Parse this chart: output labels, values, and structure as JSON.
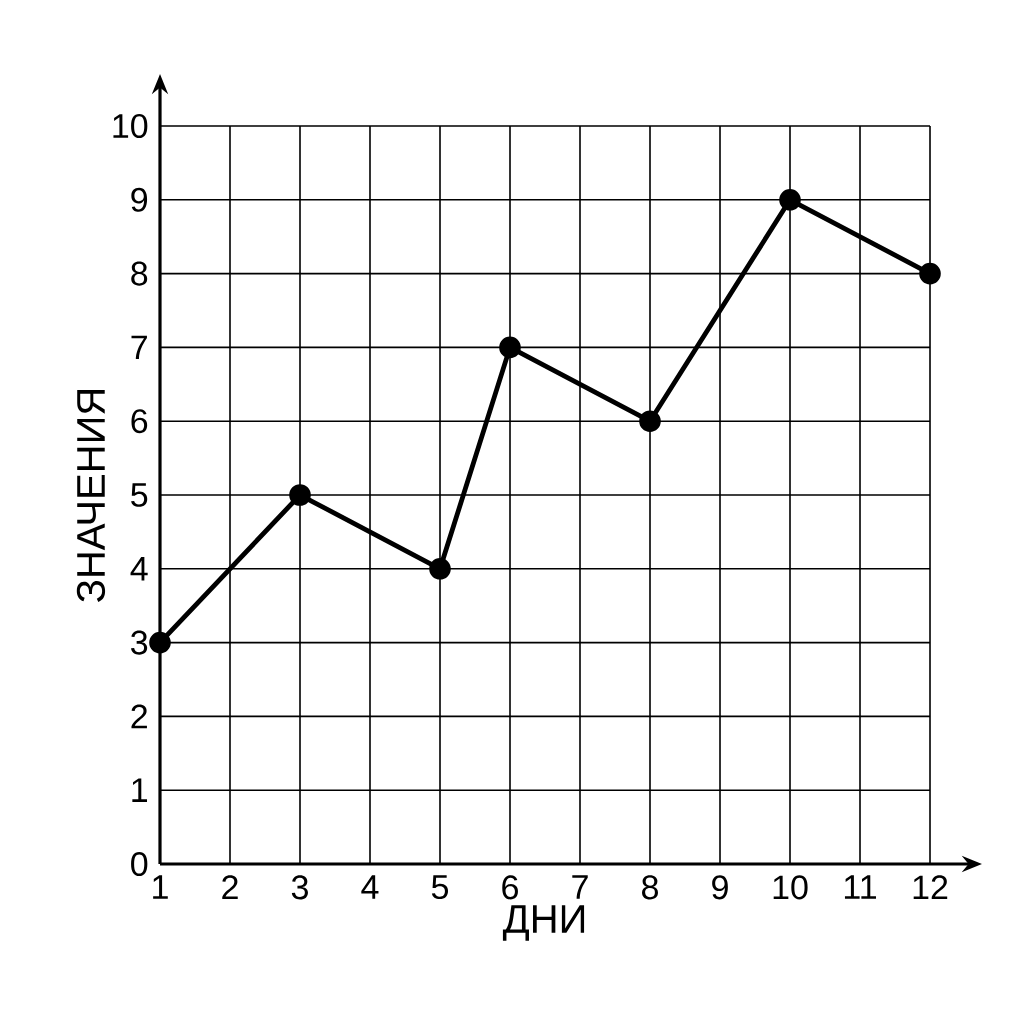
{
  "chart_data": {
    "type": "line",
    "xlabel": "ДНИ",
    "ylabel": "ЗНАЧЕНИЯ",
    "x": [
      1,
      3,
      5,
      6,
      8,
      10,
      12
    ],
    "values": [
      3,
      5,
      4,
      7,
      6,
      9,
      8
    ],
    "color": "#000000",
    "marker": "circle",
    "line_style": "solid",
    "xlim": [
      1,
      12
    ],
    "ylim": [
      0,
      10
    ],
    "xticks": [
      1,
      2,
      3,
      4,
      5,
      6,
      7,
      8,
      9,
      10,
      11,
      12
    ],
    "yticks": [
      0,
      1,
      2,
      3,
      4,
      5,
      6,
      7,
      8,
      9,
      10
    ],
    "grid": true
  }
}
